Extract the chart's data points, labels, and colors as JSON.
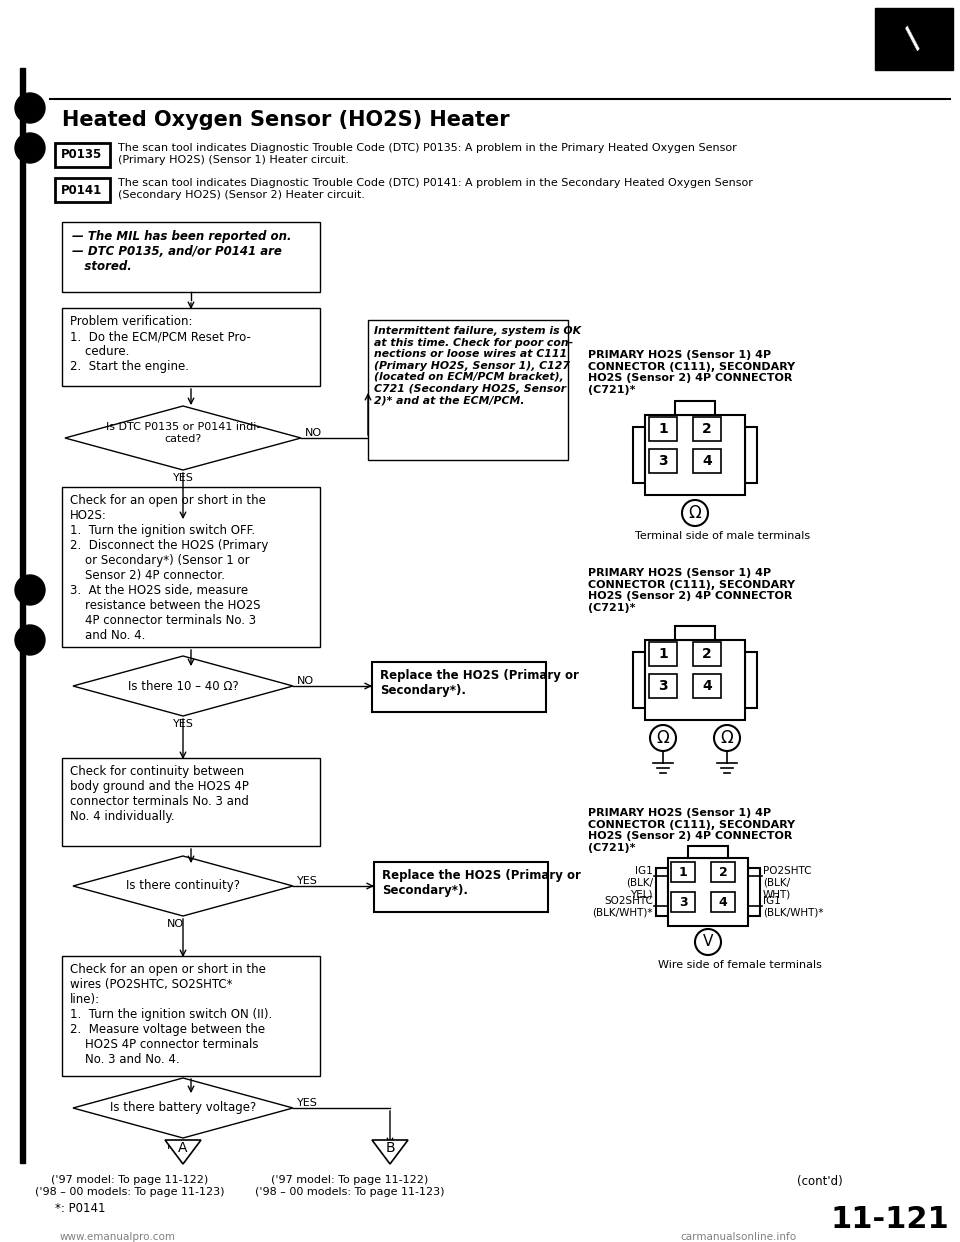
{
  "title": "Heated Oxygen Sensor (HO2S) Heater",
  "page_number": "11-121",
  "bg_color": "#ffffff",
  "p0135_label": "P0135",
  "p0135_text": "The scan tool indicates Diagnostic Trouble Code (DTC) P0135: A problem in the Primary Heated Oxygen Sensor\n(Primary HO2S) (Sensor 1) Heater circuit.",
  "p0141_label": "P0141",
  "p0141_text": "The scan tool indicates Diagnostic Trouble Code (DTC) P0141: A problem in the Secondary Heated Oxygen Sensor\n(Secondary HO2S) (Sensor 2) Heater circuit.",
  "box1_text": "— The MIL has been reported on.\n— DTC P0135, and/or P0141 are\n   stored.",
  "box2_text": "Problem verification:\n1.  Do the ECM/PCM Reset Pro-\n    cedure.\n2.  Start the engine.",
  "diamond1_text": "Is DTC P0135 or P0141 indi-\ncated?",
  "intermittent_box_text": "Intermittent failure, system is OK\nat this time. Check for poor con-\nnections or loose wires at C111\n(Primary HO2S, Sensor 1), C127\n(located on ECM/PCM bracket),\nC721 (Secondary HO2S, Sensor\n2)* and at the ECM/PCM.",
  "box3_text": "Check for an open or short in the\nHO2S:\n1.  Turn the ignition switch OFF.\n2.  Disconnect the HO2S (Primary\n    or Secondary*) (Sensor 1 or\n    Sensor 2) 4P connector.\n3.  At the HO2S side, measure\n    resistance between the HO2S\n    4P connector terminals No. 3\n    and No. 4.",
  "diamond2_text": "Is there 10 – 40 Ω?",
  "replace_box1_text": "Replace the HO2S (Primary or\nSecondary*).",
  "box4_text": "Check for continuity between\nbody ground and the HO2S 4P\nconnector terminals No. 3 and\nNo. 4 individually.",
  "diamond3_text": "Is there continuity?",
  "replace_box2_text": "Replace the HO2S (Primary or\nSecondary*).",
  "box5_text": "Check for an open or short in the\nwires (PO2SHTC, SO2SHTC*\nline):\n1.  Turn the ignition switch ON (II).\n2.  Measure voltage between the\n    HO2S 4P connector terminals\n    No. 3 and No. 4.",
  "diamond4_text": "Is there battery voltage?",
  "footnote": "*: P0141",
  "bottom_left_A": "('97 model: To page 11-122)\n('98 – 00 models: To page 11-123)",
  "bottom_mid_B": "('97 model: To page 11-122)\n('98 – 00 models: To page 11-123)",
  "bottom_right": "(cont'd)",
  "connector_label1": "PRIMARY HO2S (Sensor 1) 4P\nCONNECTOR (C111), SECONDARY\nHO2S (Sensor 2) 4P CONNECTOR\n(C721)*",
  "terminal_label": "Terminal side of male terminals",
  "connector_label2": "PRIMARY HO2S (Sensor 1) 4P\nCONNECTOR (C111), SECONDARY\nHO2S (Sensor 2) 4P CONNECTOR\n(C721)*",
  "wire_side_label": "Wire side of female terminals",
  "emanualpro": "www.emanualpro.com",
  "carmanualsonline": "carmanualsonline.info"
}
